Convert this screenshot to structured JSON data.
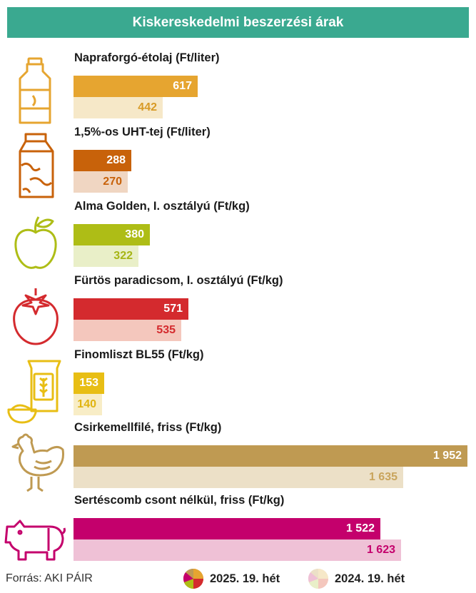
{
  "title": "Kiskereskedelmi beszerzési árak",
  "source": "Forrás: AKI PÁIR",
  "legend": {
    "current": "2025. 19. hét",
    "previous": "2024. 19. hét"
  },
  "chart_data": {
    "type": "bar",
    "orientation": "horizontal",
    "series_names": [
      "2025. 19. hét",
      "2024. 19. hét"
    ],
    "items": [
      {
        "label": "Napraforgó-étolaj (Ft/liter)",
        "icon": "oil-bottle-icon",
        "current": 617,
        "previous": 442,
        "current_label": "617",
        "previous_label": "442",
        "color": "#e6a530",
        "light": "#f6e8c8",
        "prev_text": "#d89a25"
      },
      {
        "label": "1,5%-os UHT-tej (Ft/liter)",
        "icon": "milk-carton-icon",
        "current": 288,
        "previous": 270,
        "current_label": "288",
        "previous_label": "270",
        "color": "#c8620a",
        "light": "#f0d6c2",
        "prev_text": "#c8620a"
      },
      {
        "label": "Alma Golden, I. osztályú (Ft/kg)",
        "icon": "apple-icon",
        "current": 380,
        "previous": 322,
        "current_label": "380",
        "previous_label": "322",
        "color": "#aebd16",
        "light": "#e9efc8",
        "prev_text": "#a6b515"
      },
      {
        "label": "Fürtös paradicsom, I. osztályú (Ft/kg)",
        "icon": "tomato-icon",
        "current": 571,
        "previous": 535,
        "current_label": "571",
        "previous_label": "535",
        "color": "#d42a2e",
        "light": "#f4c7bd",
        "prev_text": "#d42a2e"
      },
      {
        "label": "Finomliszt BL55 (Ft/kg)",
        "icon": "flour-icon",
        "current": 153,
        "previous": 140,
        "current_label": "153",
        "previous_label": "140",
        "color": "#e8be14",
        "light": "#f8edc6",
        "prev_text": "#e0b410"
      },
      {
        "label": "Csirkemellfilé, friss (Ft/kg)",
        "icon": "chicken-icon",
        "current": 1952,
        "previous": 1635,
        "current_label": "1 952",
        "previous_label": "1 635",
        "color": "#bf9a52",
        "light": "#ece0c7",
        "prev_text": "#c9a45c"
      },
      {
        "label": "Sertéscomb csont nélkül, friss (Ft/kg)",
        "icon": "pig-icon",
        "current": 1522,
        "previous": 1623,
        "current_label": "1 522",
        "previous_label": "1 623",
        "color": "#c4006c",
        "light": "#efc1d6",
        "prev_text": "#c4006c"
      }
    ]
  }
}
